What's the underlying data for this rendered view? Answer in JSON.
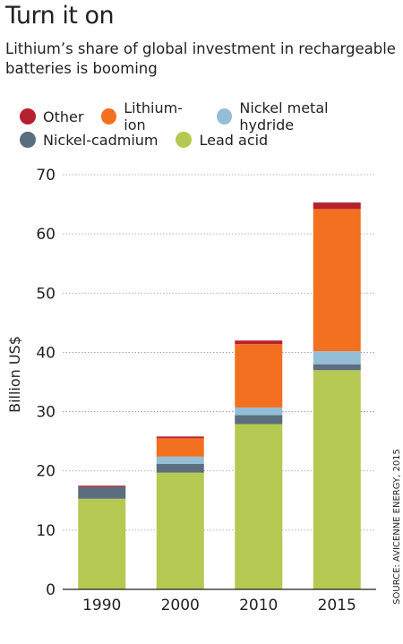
{
  "header": {
    "title": "Turn it on",
    "subtitle": "Lithium’s share of global investment in rechargeable batteries is booming"
  },
  "source": "SOURCE: AVICENNE ENERGY, 2015",
  "colors": {
    "Other": "#b5212f",
    "Lithium-ion": "#f37021",
    "Nickel metal hydride": "#94bdd6",
    "Nickel-cadmium": "#5a6e7f",
    "Lead acid": "#b5c952"
  },
  "legend": {
    "row1": [
      "Other",
      "Lithium-ion",
      "Nickel metal hydride"
    ],
    "row2": [
      "Nickel-cadmium",
      "Lead acid"
    ]
  },
  "chart_data": {
    "type": "bar",
    "stacked": true,
    "categories": [
      "1990",
      "2000",
      "2010",
      "2015"
    ],
    "series": [
      {
        "name": "Lead acid",
        "values": [
          15.3,
          19.7,
          27.9,
          37.0
        ]
      },
      {
        "name": "Nickel-cadmium",
        "values": [
          2.0,
          1.5,
          1.5,
          1.0
        ]
      },
      {
        "name": "Nickel metal hydride",
        "values": [
          0.0,
          1.2,
          1.3,
          2.2
        ]
      },
      {
        "name": "Lithium-ion",
        "values": [
          0.0,
          3.1,
          10.7,
          24.0
        ]
      },
      {
        "name": "Other",
        "values": [
          0.2,
          0.3,
          0.6,
          1.1
        ]
      }
    ],
    "ylabel": "Billion US$",
    "xlabel": "",
    "ylim": [
      0,
      70
    ],
    "yticks": [
      0,
      10,
      20,
      30,
      40,
      50,
      60,
      70
    ],
    "grid": true,
    "legend_position": "top"
  }
}
